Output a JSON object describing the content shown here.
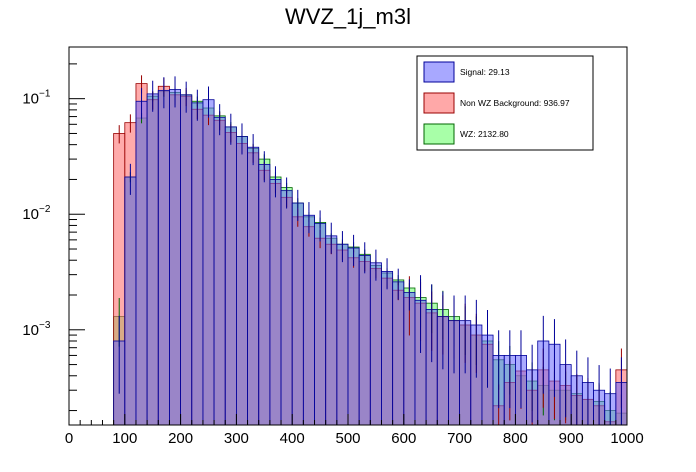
{
  "chart_data": {
    "type": "histogram",
    "title": "WVZ_1j_m3l",
    "xlabel": "",
    "ylabel": "",
    "xlim": [
      0,
      1000
    ],
    "ylim": [
      0.00015,
      0.28
    ],
    "yscale": "log",
    "grid": false,
    "legend_position": "top-right",
    "x_ticks": [
      "0",
      "100",
      "200",
      "300",
      "400",
      "500",
      "600",
      "700",
      "800",
      "900",
      "1000"
    ],
    "y_ticks": [
      {
        "value": 0.1,
        "mantissa": "10",
        "exponent": "−1"
      },
      {
        "value": 0.01,
        "mantissa": "10",
        "exponent": "−2"
      },
      {
        "value": 0.001,
        "mantissa": "10",
        "exponent": "−3"
      }
    ],
    "bin_width": 20,
    "bin_start": 0,
    "series": [
      {
        "name": "WZ",
        "label": "WZ: 2132.80",
        "fill": "#66ff66",
        "edge": "#006600",
        "values": [
          0,
          0,
          0,
          0,
          0.0013,
          0.021,
          0.068,
          0.105,
          0.115,
          0.113,
          0.108,
          0.095,
          0.083,
          0.071,
          0.057,
          0.047,
          0.037,
          0.03,
          0.021,
          0.017,
          0.0125,
          0.0095,
          0.0085,
          0.0062,
          0.0055,
          0.0052,
          0.0045,
          0.0036,
          0.0031,
          0.0027,
          0.0023,
          0.0019,
          0.0017,
          0.0015,
          0.0013,
          0.0011,
          0.0009,
          0.0008,
          0.00055,
          0.0005,
          0.0004,
          0.00036,
          0.00033,
          0.0003,
          0.0003,
          0.00028,
          0.00025,
          0.00024,
          0.0002,
          0.00019
        ]
      },
      {
        "name": "Non WZ Background",
        "label": "Non WZ Background: 936.97",
        "fill": "#ff6666",
        "edge": "#990000",
        "values": [
          0,
          0,
          0,
          0,
          0.05,
          0.062,
          0.135,
          0.098,
          0.128,
          0.108,
          0.105,
          0.081,
          0.072,
          0.065,
          0.051,
          0.041,
          0.034,
          0.024,
          0.0185,
          0.014,
          0.0095,
          0.0078,
          0.0062,
          0.0055,
          0.0049,
          0.0042,
          0.0039,
          0.0034,
          0.0028,
          0.0022,
          0.0019,
          0.0017,
          0.0014,
          0.0013,
          0.0012,
          0.0011,
          0.0009,
          0.00075,
          0.00022,
          0.00035,
          0.00044,
          0.0003,
          0.00045,
          0.00036,
          0.00033,
          0.00027,
          0.00025,
          0.00022,
          0.00016,
          0.00045
        ]
      },
      {
        "name": "Signal",
        "label": "Signal: 29.13",
        "fill": "#6666ff",
        "edge": "#000099",
        "values": [
          0,
          0,
          0,
          0,
          0.0008,
          0.021,
          0.095,
          0.11,
          0.118,
          0.12,
          0.108,
          0.092,
          0.098,
          0.069,
          0.057,
          0.047,
          0.038,
          0.027,
          0.02,
          0.016,
          0.0125,
          0.0098,
          0.0083,
          0.0065,
          0.0055,
          0.0051,
          0.0044,
          0.0038,
          0.0032,
          0.0026,
          0.0021,
          0.0018,
          0.0015,
          0.0013,
          0.0012,
          0.0012,
          0.0011,
          0.0009,
          0.0006,
          0.0006,
          0.0006,
          0.00045,
          0.0008,
          0.00075,
          0.0005,
          0.0004,
          0.00035,
          0.0003,
          0.00028,
          0.00035
        ]
      }
    ]
  }
}
